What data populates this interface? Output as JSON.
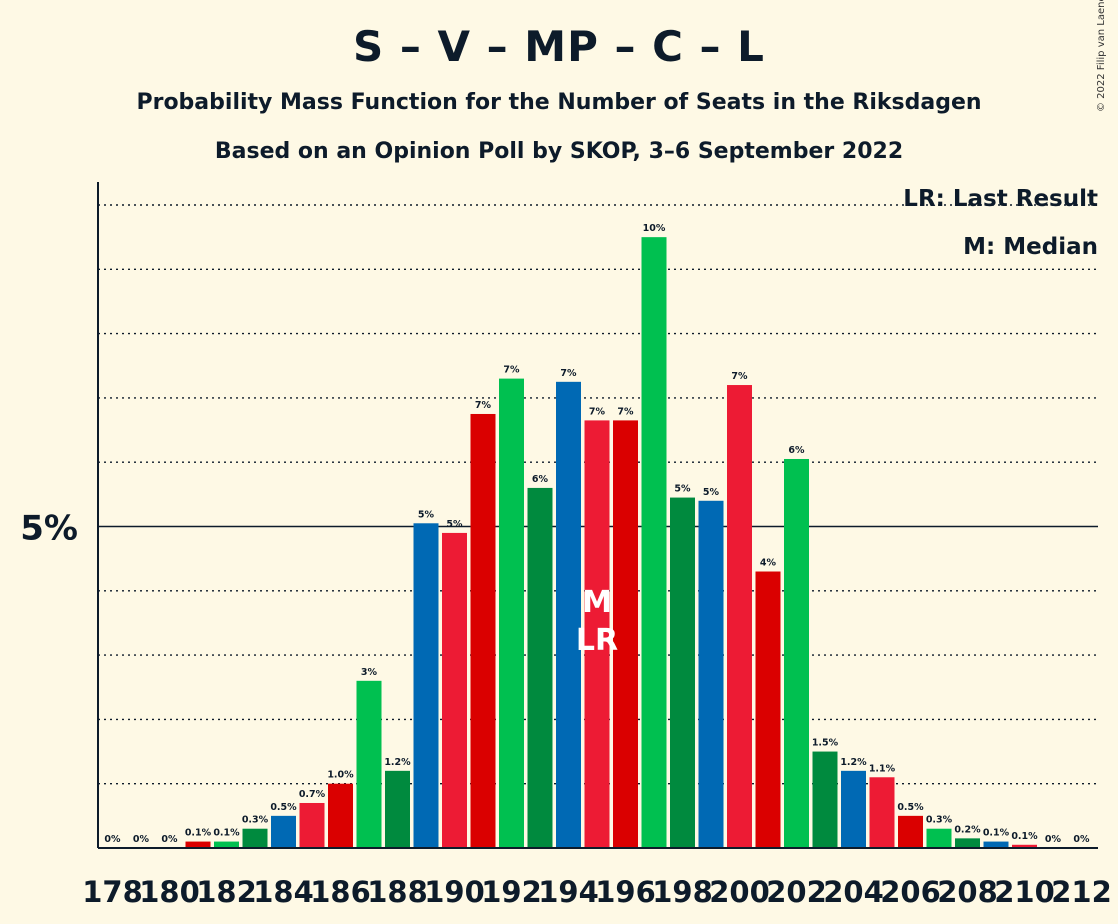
{
  "title": "S – V – MP – C – L",
  "subtitle": "Probability Mass Function for the Number of Seats in the Riksdagen",
  "subtitle2": "Based on an Opinion Poll by SKOP, 3–6 September 2022",
  "copyright": "© 2022 Filip van Laenen",
  "legend": {
    "lr": "LR: Last Result",
    "m": "M: Median"
  },
  "colors": {
    "background": "#FEF9E5",
    "palette": [
      "#0069B4",
      "#ED1B34",
      "#DA0000",
      "#00C050",
      "#008A3E"
    ]
  },
  "chart_data": {
    "type": "bar",
    "x": [
      178,
      179,
      180,
      181,
      182,
      183,
      184,
      185,
      186,
      187,
      188,
      189,
      190,
      191,
      192,
      193,
      194,
      195,
      196,
      197,
      198,
      199,
      200,
      201,
      202,
      203,
      204,
      205,
      206,
      207,
      208,
      209,
      210,
      211,
      212
    ],
    "values": [
      0,
      0,
      0,
      0.1,
      0.1,
      0.3,
      0.5,
      0.7,
      1.0,
      2.6,
      1.2,
      5.05,
      4.9,
      6.75,
      7.3,
      5.6,
      7.25,
      6.65,
      6.65,
      9.5,
      5.45,
      5.4,
      7.2,
      4.3,
      6.05,
      1.5,
      1.2,
      1.1,
      0.5,
      0.3,
      0.15,
      0.1,
      0.05,
      0,
      0
    ],
    "labels": [
      "0%",
      "0%",
      "0%",
      "0.1%",
      "0.1%",
      "0.3%",
      "0.5%",
      "0.7%",
      "1.0%",
      "3%",
      "1.2%",
      "5%",
      "5%",
      "7%",
      "7%",
      "6%",
      "7%",
      "7%",
      "7%",
      "10%",
      "5%",
      "5%",
      "7%",
      "4%",
      "6%",
      "1.5%",
      "1.2%",
      "1.1%",
      "0.5%",
      "0.3%",
      "0.2%",
      "0.1%",
      "0.1%",
      "0%",
      "0%"
    ],
    "color_index": [
      0,
      1,
      2,
      2,
      3,
      4,
      0,
      1,
      2,
      3,
      4,
      0,
      1,
      2,
      3,
      4,
      0,
      1,
      2,
      3,
      4,
      0,
      1,
      2,
      3,
      4,
      0,
      1,
      2,
      3,
      4,
      0,
      1,
      2,
      3
    ],
    "x_tick_labels": [
      "178",
      "180",
      "182",
      "184",
      "186",
      "188",
      "190",
      "192",
      "194",
      "196",
      "198",
      "200",
      "202",
      "204",
      "206",
      "208",
      "210",
      "212"
    ],
    "y_tick_label": "5%",
    "y_tick_value": 5,
    "ylim": [
      0,
      10.3
    ],
    "grid": "dotted",
    "median_seat": 195,
    "median_marker": "M",
    "last_result_seat": 195,
    "last_result_marker": "LR"
  }
}
